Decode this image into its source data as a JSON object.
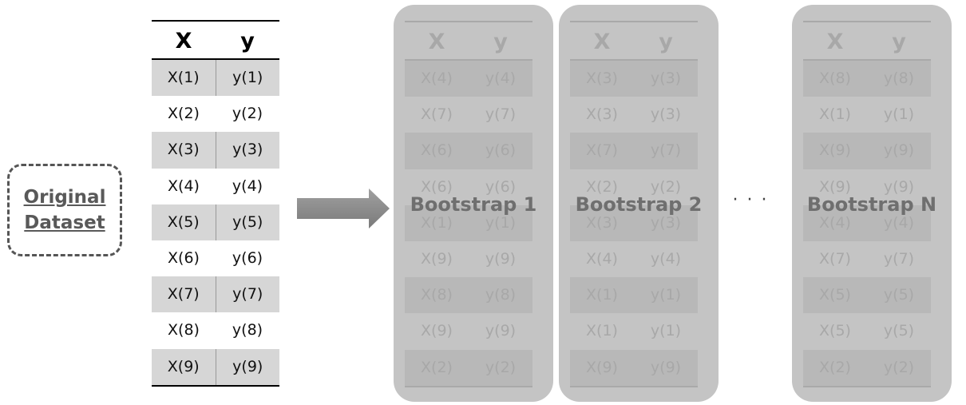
{
  "original_label": [
    "Original",
    "Dataset"
  ],
  "original_table": {
    "headers": [
      "X",
      "y"
    ],
    "rows": [
      [
        "X(1)",
        "y(1)"
      ],
      [
        "X(2)",
        "y(2)"
      ],
      [
        "X(3)",
        "y(3)"
      ],
      [
        "X(4)",
        "y(4)"
      ],
      [
        "X(5)",
        "y(5)"
      ],
      [
        "X(6)",
        "y(6)"
      ],
      [
        "X(7)",
        "y(7)"
      ],
      [
        "X(8)",
        "y(8)"
      ],
      [
        "X(9)",
        "y(9)"
      ]
    ]
  },
  "ellipsis": "· · ·",
  "bootstraps": [
    {
      "title": "Bootstrap 1",
      "headers": [
        "X",
        "y"
      ],
      "rows": [
        [
          "X(4)",
          "y(4)"
        ],
        [
          "X(7)",
          "y(7)"
        ],
        [
          "X(6)",
          "y(6)"
        ],
        [
          "X(6)",
          "y(6)"
        ],
        [
          "X(1)",
          "y(1)"
        ],
        [
          "X(9)",
          "y(9)"
        ],
        [
          "X(8)",
          "y(8)"
        ],
        [
          "X(9)",
          "y(9)"
        ],
        [
          "X(2)",
          "y(2)"
        ]
      ]
    },
    {
      "title": "Bootstrap 2",
      "headers": [
        "X",
        "y"
      ],
      "rows": [
        [
          "X(3)",
          "y(3)"
        ],
        [
          "X(3)",
          "y(3)"
        ],
        [
          "X(7)",
          "y(7)"
        ],
        [
          "X(2)",
          "y(2)"
        ],
        [
          "X(3)",
          "y(3)"
        ],
        [
          "X(4)",
          "y(4)"
        ],
        [
          "X(1)",
          "y(1)"
        ],
        [
          "X(1)",
          "y(1)"
        ],
        [
          "X(9)",
          "y(9)"
        ]
      ]
    },
    {
      "title": "Bootstrap N",
      "headers": [
        "X",
        "y"
      ],
      "rows": [
        [
          "X(8)",
          "y(8)"
        ],
        [
          "X(1)",
          "y(1)"
        ],
        [
          "X(9)",
          "y(9)"
        ],
        [
          "X(9)",
          "y(9)"
        ],
        [
          "X(4)",
          "y(4)"
        ],
        [
          "X(7)",
          "y(7)"
        ],
        [
          "X(5)",
          "y(5)"
        ],
        [
          "X(5)",
          "y(5)"
        ],
        [
          "X(2)",
          "y(2)"
        ]
      ]
    }
  ],
  "colors": {
    "panel": "#c4c4c4",
    "arrow": "#8c8c8c",
    "shade": "#d6d6d6"
  }
}
